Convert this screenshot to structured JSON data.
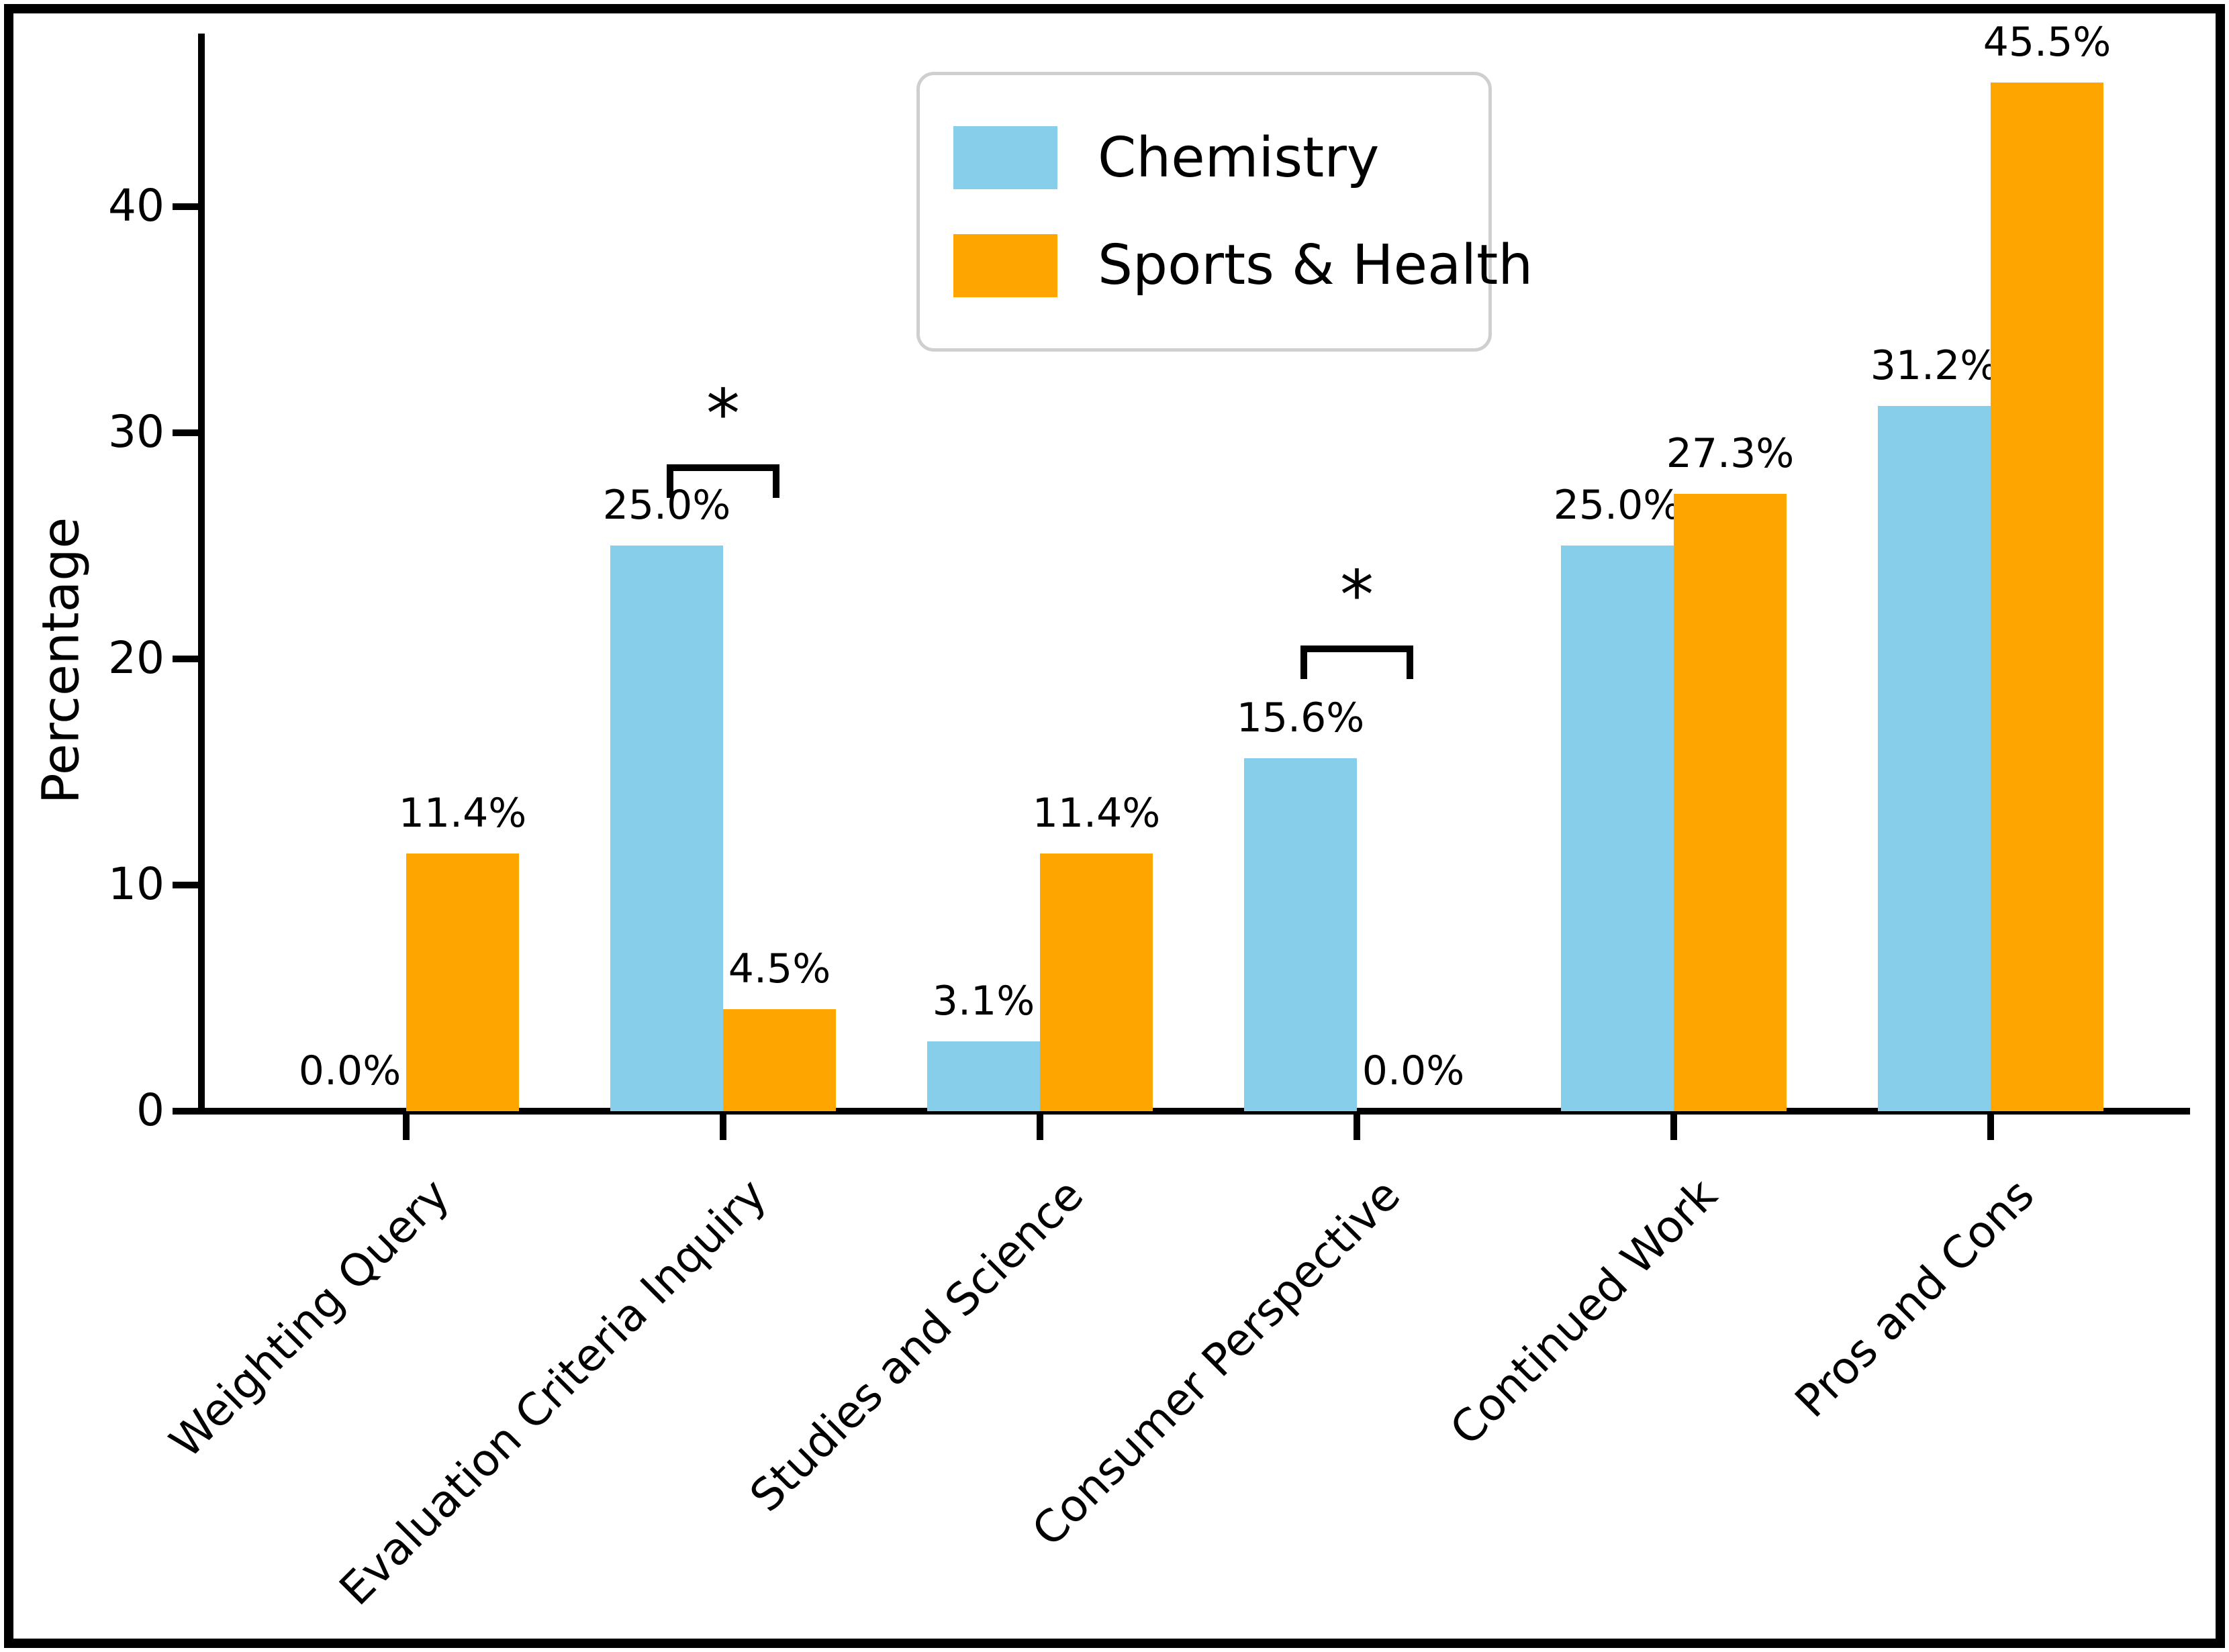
{
  "chart_data": {
    "type": "bar",
    "title": "",
    "ylabel": "Percentage",
    "xlabel": "",
    "grid": false,
    "legend_position": "upper center",
    "ylim": [
      0,
      47
    ],
    "yticks": [
      0,
      10,
      20,
      30,
      40
    ],
    "categories": [
      "Weighting Query",
      "Evaluation Criteria Inquiry",
      "Studies and Science",
      "Consumer Perspective",
      "Continued Work",
      "Pros and Cons"
    ],
    "series": [
      {
        "name": "Chemistry",
        "color": "#87CEEB",
        "values": [
          0.0,
          25.0,
          3.1,
          15.6,
          25.0,
          31.2
        ],
        "labels": [
          "0.0%",
          "25.0%",
          "3.1%",
          "15.6%",
          "25.0%",
          "31.2%"
        ]
      },
      {
        "name": "Sports & Health",
        "color": "#FFA500",
        "values": [
          11.4,
          4.5,
          11.4,
          0.0,
          27.3,
          45.5
        ],
        "labels": [
          "11.4%",
          "4.5%",
          "11.4%",
          "0.0%",
          "27.3%",
          "45.5%"
        ]
      }
    ],
    "significance": [
      {
        "category_index": 1,
        "label": "*",
        "y_value": 28.6
      },
      {
        "category_index": 3,
        "label": "*",
        "y_value": 20.6
      }
    ]
  }
}
